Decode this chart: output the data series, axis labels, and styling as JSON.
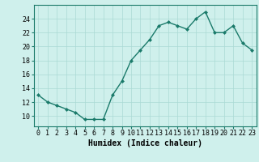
{
  "x": [
    0,
    1,
    2,
    3,
    4,
    5,
    6,
    7,
    8,
    9,
    10,
    11,
    12,
    13,
    14,
    15,
    16,
    17,
    18,
    19,
    20,
    21,
    22,
    23
  ],
  "y": [
    13,
    12,
    11.5,
    11,
    10.5,
    9.5,
    9.5,
    9.5,
    13,
    15,
    18,
    19.5,
    21,
    23,
    23.5,
    23,
    22.5,
    24,
    25,
    22,
    22,
    23,
    20.5,
    19.5
  ],
  "line_color": "#1a7a6a",
  "bg_color": "#cff0ec",
  "grid_color": "#aadad4",
  "xlabel": "Humidex (Indice chaleur)",
  "ylim": [
    8.5,
    26
  ],
  "yticks": [
    10,
    12,
    14,
    16,
    18,
    20,
    22,
    24
  ],
  "xlim": [
    -0.5,
    23.5
  ],
  "xticks": [
    0,
    1,
    2,
    3,
    4,
    5,
    6,
    7,
    8,
    9,
    10,
    11,
    12,
    13,
    14,
    15,
    16,
    17,
    18,
    19,
    20,
    21,
    22,
    23
  ],
  "xlabel_fontsize": 7,
  "tick_fontsize": 6,
  "marker": "D",
  "marker_size": 2.0,
  "linewidth": 1.0
}
